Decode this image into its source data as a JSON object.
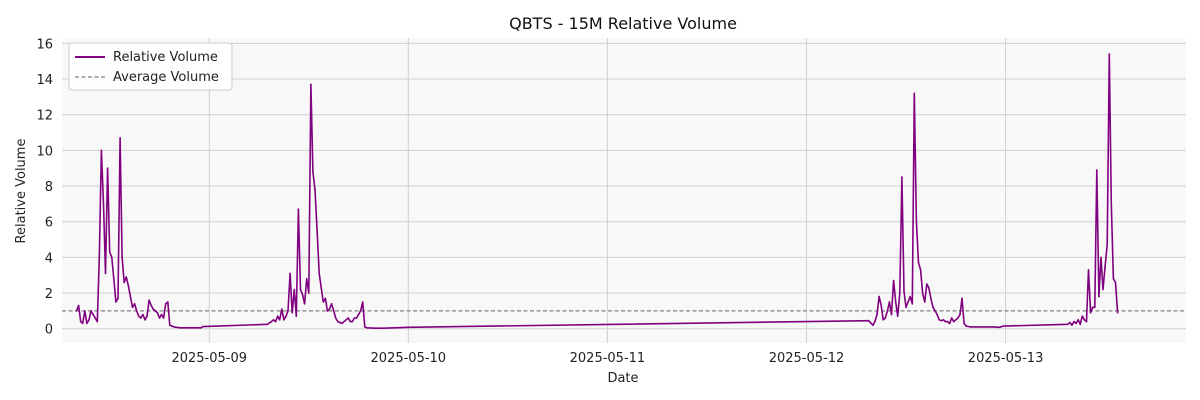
{
  "chart_data": {
    "type": "line",
    "title": "QBTS - 15M Relative Volume",
    "xlabel": "Date",
    "ylabel": "Relative Volume",
    "ylim": [
      -0.8,
      16.3
    ],
    "xlim": [
      "2025-05-08 06:15",
      "2025-05-13 21:45"
    ],
    "yticks": [
      0,
      2,
      4,
      6,
      8,
      10,
      12,
      14,
      16
    ],
    "xticks": [
      "2025-05-09",
      "2025-05-10",
      "2025-05-11",
      "2025-05-12",
      "2025-05-13"
    ],
    "grid": true,
    "legend": "top-left",
    "colors": {
      "series": "#800080",
      "reference": "#808080",
      "plot_bg": "#f8f8f8",
      "grid": "#d0d0d0"
    },
    "series": [
      {
        "name": "Relative Volume",
        "points": [
          [
            "2025-05-08 08:00",
            1.0
          ],
          [
            "2025-05-08 08:15",
            1.3
          ],
          [
            "2025-05-08 08:30",
            0.4
          ],
          [
            "2025-05-08 08:45",
            0.3
          ],
          [
            "2025-05-08 09:00",
            1.0
          ],
          [
            "2025-05-08 09:15",
            0.3
          ],
          [
            "2025-05-08 09:30",
            0.5
          ],
          [
            "2025-05-08 09:45",
            1.0
          ],
          [
            "2025-05-08 10:00",
            0.8
          ],
          [
            "2025-05-08 10:15",
            0.6
          ],
          [
            "2025-05-08 10:30",
            0.4
          ],
          [
            "2025-05-08 10:45",
            4.0
          ],
          [
            "2025-05-08 11:00",
            10.0
          ],
          [
            "2025-05-08 11:15",
            7.0
          ],
          [
            "2025-05-08 11:30",
            3.1
          ],
          [
            "2025-05-08 11:45",
            9.0
          ],
          [
            "2025-05-08 12:00",
            4.3
          ],
          [
            "2025-05-08 12:15",
            4.0
          ],
          [
            "2025-05-08 12:30",
            2.8
          ],
          [
            "2025-05-08 12:45",
            1.5
          ],
          [
            "2025-05-08 13:00",
            1.7
          ],
          [
            "2025-05-08 13:15",
            10.7
          ],
          [
            "2025-05-08 13:30",
            4.0
          ],
          [
            "2025-05-08 13:45",
            2.6
          ],
          [
            "2025-05-08 14:00",
            2.9
          ],
          [
            "2025-05-08 14:15",
            2.4
          ],
          [
            "2025-05-08 14:30",
            1.8
          ],
          [
            "2025-05-08 14:45",
            1.2
          ],
          [
            "2025-05-08 15:00",
            1.4
          ],
          [
            "2025-05-08 15:15",
            1.0
          ],
          [
            "2025-05-08 15:30",
            0.7
          ],
          [
            "2025-05-08 15:45",
            0.6
          ],
          [
            "2025-05-08 16:00",
            0.8
          ],
          [
            "2025-05-08 16:15",
            0.5
          ],
          [
            "2025-05-08 16:30",
            0.7
          ],
          [
            "2025-05-08 16:45",
            1.6
          ],
          [
            "2025-05-08 17:00",
            1.3
          ],
          [
            "2025-05-08 17:15",
            1.1
          ],
          [
            "2025-05-08 17:30",
            1.0
          ],
          [
            "2025-05-08 17:45",
            0.9
          ],
          [
            "2025-05-08 18:00",
            0.6
          ],
          [
            "2025-05-08 18:15",
            0.8
          ],
          [
            "2025-05-08 18:30",
            0.6
          ],
          [
            "2025-05-08 18:45",
            1.4
          ],
          [
            "2025-05-08 19:00",
            1.5
          ],
          [
            "2025-05-08 19:15",
            0.2
          ],
          [
            "2025-05-08 19:30",
            0.15
          ],
          [
            "2025-05-08 19:45",
            0.1
          ],
          [
            "2025-05-08 20:30",
            0.05
          ],
          [
            "2025-05-08 22:00",
            0.05
          ],
          [
            "2025-05-08 23:00",
            0.05
          ],
          [
            "2025-05-08 23:15",
            0.12
          ],
          [
            "2025-05-09 07:00",
            0.25
          ],
          [
            "2025-05-09 07:30",
            0.4
          ],
          [
            "2025-05-09 07:45",
            0.5
          ],
          [
            "2025-05-09 08:00",
            0.4
          ],
          [
            "2025-05-09 08:15",
            0.7
          ],
          [
            "2025-05-09 08:30",
            0.5
          ],
          [
            "2025-05-09 08:45",
            1.1
          ],
          [
            "2025-05-09 09:00",
            0.5
          ],
          [
            "2025-05-09 09:15",
            0.7
          ],
          [
            "2025-05-09 09:30",
            1.0
          ],
          [
            "2025-05-09 09:45",
            3.1
          ],
          [
            "2025-05-09 10:00",
            0.9
          ],
          [
            "2025-05-09 10:15",
            2.2
          ],
          [
            "2025-05-09 10:30",
            0.7
          ],
          [
            "2025-05-09 10:45",
            6.7
          ],
          [
            "2025-05-09 11:00",
            2.2
          ],
          [
            "2025-05-09 11:15",
            1.9
          ],
          [
            "2025-05-09 11:30",
            1.4
          ],
          [
            "2025-05-09 11:45",
            2.8
          ],
          [
            "2025-05-09 12:00",
            2.0
          ],
          [
            "2025-05-09 12:15",
            13.7
          ],
          [
            "2025-05-09 12:30",
            8.8
          ],
          [
            "2025-05-09 12:45",
            7.8
          ],
          [
            "2025-05-09 13:00",
            5.5
          ],
          [
            "2025-05-09 13:15",
            3.1
          ],
          [
            "2025-05-09 13:30",
            2.3
          ],
          [
            "2025-05-09 13:45",
            1.5
          ],
          [
            "2025-05-09 14:00",
            1.7
          ],
          [
            "2025-05-09 14:15",
            1.0
          ],
          [
            "2025-05-09 14:30",
            1.1
          ],
          [
            "2025-05-09 14:45",
            1.4
          ],
          [
            "2025-05-09 15:00",
            1.0
          ],
          [
            "2025-05-09 15:15",
            0.6
          ],
          [
            "2025-05-09 15:30",
            0.4
          ],
          [
            "2025-05-09 15:45",
            0.35
          ],
          [
            "2025-05-09 16:00",
            0.3
          ],
          [
            "2025-05-09 16:30",
            0.5
          ],
          [
            "2025-05-09 16:45",
            0.6
          ],
          [
            "2025-05-09 17:00",
            0.4
          ],
          [
            "2025-05-09 17:15",
            0.4
          ],
          [
            "2025-05-09 17:30",
            0.6
          ],
          [
            "2025-05-09 17:45",
            0.6
          ],
          [
            "2025-05-09 18:00",
            0.8
          ],
          [
            "2025-05-09 18:15",
            1.0
          ],
          [
            "2025-05-09 18:30",
            1.5
          ],
          [
            "2025-05-09 18:45",
            0.1
          ],
          [
            "2025-05-09 19:00",
            0.05
          ],
          [
            "2025-05-09 20:00",
            0.03
          ],
          [
            "2025-05-09 21:00",
            0.03
          ],
          [
            "2025-05-10 00:00",
            0.08
          ],
          [
            "2025-05-12 07:30",
            0.45
          ],
          [
            "2025-05-12 08:00",
            0.2
          ],
          [
            "2025-05-12 08:15",
            0.4
          ],
          [
            "2025-05-12 08:30",
            0.8
          ],
          [
            "2025-05-12 08:45",
            1.8
          ],
          [
            "2025-05-12 09:00",
            1.3
          ],
          [
            "2025-05-12 09:15",
            0.5
          ],
          [
            "2025-05-12 09:30",
            0.6
          ],
          [
            "2025-05-12 09:45",
            1.0
          ],
          [
            "2025-05-12 10:00",
            1.5
          ],
          [
            "2025-05-12 10:15",
            0.8
          ],
          [
            "2025-05-12 10:30",
            2.7
          ],
          [
            "2025-05-12 10:45",
            1.5
          ],
          [
            "2025-05-12 11:00",
            0.7
          ],
          [
            "2025-05-12 11:15",
            2.0
          ],
          [
            "2025-05-12 11:30",
            8.5
          ],
          [
            "2025-05-12 11:45",
            2.1
          ],
          [
            "2025-05-12 12:00",
            1.2
          ],
          [
            "2025-05-12 12:15",
            1.5
          ],
          [
            "2025-05-12 12:30",
            1.8
          ],
          [
            "2025-05-12 12:45",
            1.4
          ],
          [
            "2025-05-12 13:00",
            13.2
          ],
          [
            "2025-05-12 13:15",
            6.0
          ],
          [
            "2025-05-12 13:30",
            3.7
          ],
          [
            "2025-05-12 13:45",
            3.3
          ],
          [
            "2025-05-12 14:00",
            2.0
          ],
          [
            "2025-05-12 14:15",
            1.5
          ],
          [
            "2025-05-12 14:30",
            2.5
          ],
          [
            "2025-05-12 14:45",
            2.3
          ],
          [
            "2025-05-12 15:00",
            1.7
          ],
          [
            "2025-05-12 15:15",
            1.2
          ],
          [
            "2025-05-12 15:30",
            1.0
          ],
          [
            "2025-05-12 15:45",
            0.8
          ],
          [
            "2025-05-12 16:00",
            0.5
          ],
          [
            "2025-05-12 16:15",
            0.45
          ],
          [
            "2025-05-12 16:30",
            0.5
          ],
          [
            "2025-05-12 16:45",
            0.4
          ],
          [
            "2025-05-12 17:00",
            0.4
          ],
          [
            "2025-05-12 17:15",
            0.3
          ],
          [
            "2025-05-12 17:30",
            0.6
          ],
          [
            "2025-05-12 17:45",
            0.4
          ],
          [
            "2025-05-12 18:00",
            0.5
          ],
          [
            "2025-05-12 18:15",
            0.6
          ],
          [
            "2025-05-12 18:30",
            0.8
          ],
          [
            "2025-05-12 18:45",
            1.7
          ],
          [
            "2025-05-12 19:00",
            0.3
          ],
          [
            "2025-05-12 19:15",
            0.15
          ],
          [
            "2025-05-12 19:45",
            0.1
          ],
          [
            "2025-05-12 21:00",
            0.1
          ],
          [
            "2025-05-12 22:30",
            0.1
          ],
          [
            "2025-05-12 23:15",
            0.08
          ],
          [
            "2025-05-12 23:45",
            0.15
          ],
          [
            "2025-05-13 07:30",
            0.25
          ],
          [
            "2025-05-13 07:45",
            0.35
          ],
          [
            "2025-05-13 08:00",
            0.2
          ],
          [
            "2025-05-13 08:15",
            0.4
          ],
          [
            "2025-05-13 08:30",
            0.3
          ],
          [
            "2025-05-13 08:45",
            0.5
          ],
          [
            "2025-05-13 09:00",
            0.25
          ],
          [
            "2025-05-13 09:15",
            0.7
          ],
          [
            "2025-05-13 09:30",
            0.5
          ],
          [
            "2025-05-13 09:45",
            0.4
          ],
          [
            "2025-05-13 10:00",
            3.3
          ],
          [
            "2025-05-13 10:15",
            0.9
          ],
          [
            "2025-05-13 10:30",
            1.2
          ],
          [
            "2025-05-13 10:45",
            1.2
          ],
          [
            "2025-05-13 11:00",
            8.9
          ],
          [
            "2025-05-13 11:15",
            1.8
          ],
          [
            "2025-05-13 11:30",
            4.0
          ],
          [
            "2025-05-13 11:45",
            2.2
          ],
          [
            "2025-05-13 12:00",
            3.5
          ],
          [
            "2025-05-13 12:15",
            4.7
          ],
          [
            "2025-05-13 12:30",
            15.4
          ],
          [
            "2025-05-13 12:45",
            7.0
          ],
          [
            "2025-05-13 13:00",
            2.8
          ],
          [
            "2025-05-13 13:15",
            2.6
          ],
          [
            "2025-05-13 13:30",
            0.9
          ]
        ]
      },
      {
        "name": "Average Volume",
        "style": "dashed",
        "value": 1.0
      }
    ]
  }
}
